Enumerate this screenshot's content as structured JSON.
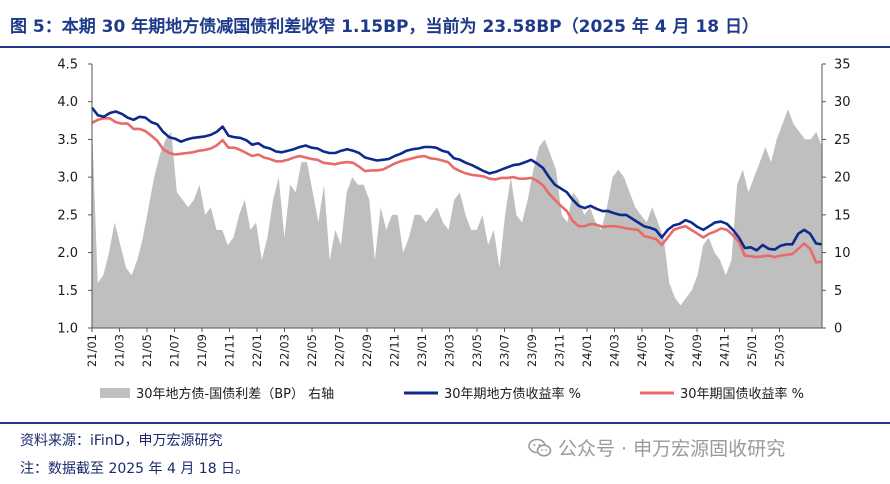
{
  "title": "图 5：本期 30 年期地方债减国债利差收窄 1.15BP，当前为 23.58BP（2025 年 4 月 18 日）",
  "source": "资料来源：iFinD，申万宏源研究",
  "note": "注：数据截至 2025 年 4 月 18 日。",
  "watermark": "公众号 · 申万宏源固收研究",
  "watermark_icon": "wechat-icon",
  "colors": {
    "spread": "#bfbfbf",
    "local": "#0d2a8c",
    "gov": "#e86a6a",
    "accent": "#1f3a8a"
  },
  "chart_data": {
    "type": "line",
    "x_labels": [
      "21/01",
      "21/03",
      "21/05",
      "21/07",
      "21/09",
      "21/11",
      "22/01",
      "22/03",
      "22/05",
      "22/07",
      "22/09",
      "22/11",
      "23/01",
      "23/03",
      "23/05",
      "23/07",
      "23/09",
      "23/11",
      "24/01",
      "24/03",
      "24/05",
      "24/07",
      "24/09",
      "24/11",
      "25/01",
      "25/03"
    ],
    "y_left": {
      "ticks": [
        "1.0",
        "1.5",
        "2.0",
        "2.5",
        "3.0",
        "3.5",
        "4.0",
        "4.5"
      ],
      "lim": [
        1.0,
        4.5
      ]
    },
    "y_right": {
      "ticks": [
        "0",
        "5",
        "10",
        "15",
        "20",
        "25",
        "30",
        "35"
      ],
      "lim": [
        0,
        35
      ]
    },
    "grid": false,
    "legend_position": "bottom",
    "series": [
      {
        "name": "30年地方债-国债利差（BP） 右轴",
        "type": "area",
        "axis": "right",
        "values": [
          27,
          6,
          7,
          10,
          14,
          11,
          8,
          7,
          9,
          12,
          16,
          20,
          23,
          25,
          26,
          18,
          17,
          16,
          17,
          19,
          15,
          16,
          13,
          13,
          11,
          12,
          15,
          17,
          13,
          14,
          9,
          12,
          17,
          20,
          12,
          19,
          18,
          22,
          22,
          18,
          14,
          19,
          9,
          13,
          11,
          18,
          20,
          19,
          19,
          17,
          9,
          16,
          13,
          15,
          15,
          10,
          12,
          15,
          15,
          14,
          15,
          16,
          14,
          13,
          17,
          18,
          15,
          13,
          13,
          15,
          11,
          13,
          8,
          15,
          20,
          15,
          14,
          17,
          21,
          24,
          25,
          23,
          21,
          15,
          14,
          18,
          17,
          15,
          16,
          14,
          13,
          16,
          20,
          21,
          20,
          18,
          16,
          15,
          14,
          16,
          14,
          12,
          6,
          4,
          3,
          4,
          5,
          7,
          11,
          12,
          10,
          9,
          7,
          9,
          19,
          21,
          18,
          20,
          22,
          24,
          22,
          25,
          27,
          29,
          27,
          26,
          25,
          25,
          26,
          24
        ]
      },
      {
        "name": "30年期地方债收益率 %",
        "type": "line",
        "axis": "left",
        "values": [
          3.92,
          3.82,
          3.8,
          3.85,
          3.87,
          3.84,
          3.79,
          3.76,
          3.8,
          3.79,
          3.73,
          3.7,
          3.6,
          3.53,
          3.51,
          3.47,
          3.5,
          3.52,
          3.53,
          3.54,
          3.56,
          3.6,
          3.67,
          3.55,
          3.53,
          3.52,
          3.49,
          3.43,
          3.45,
          3.4,
          3.38,
          3.34,
          3.33,
          3.35,
          3.37,
          3.4,
          3.42,
          3.39,
          3.38,
          3.34,
          3.32,
          3.32,
          3.35,
          3.37,
          3.35,
          3.32,
          3.26,
          3.24,
          3.22,
          3.23,
          3.24,
          3.28,
          3.31,
          3.35,
          3.37,
          3.38,
          3.4,
          3.4,
          3.39,
          3.35,
          3.33,
          3.25,
          3.23,
          3.19,
          3.16,
          3.12,
          3.08,
          3.05,
          3.07,
          3.1,
          3.13,
          3.16,
          3.17,
          3.2,
          3.23,
          3.18,
          3.12,
          3.0,
          2.9,
          2.85,
          2.8,
          2.7,
          2.62,
          2.59,
          2.62,
          2.58,
          2.55,
          2.55,
          2.52,
          2.5,
          2.5,
          2.45,
          2.4,
          2.35,
          2.33,
          2.3,
          2.2,
          2.3,
          2.36,
          2.38,
          2.43,
          2.4,
          2.34,
          2.3,
          2.35,
          2.4,
          2.41,
          2.38,
          2.3,
          2.2,
          2.06,
          2.07,
          2.03,
          2.1,
          2.05,
          2.04,
          2.09,
          2.11,
          2.11,
          2.25,
          2.3,
          2.25,
          2.12,
          2.11
        ]
      },
      {
        "name": "30年期国债收益率 %",
        "type": "line",
        "axis": "left",
        "values": [
          3.72,
          3.76,
          3.78,
          3.78,
          3.73,
          3.71,
          3.71,
          3.64,
          3.64,
          3.61,
          3.55,
          3.48,
          3.37,
          3.32,
          3.3,
          3.31,
          3.32,
          3.33,
          3.35,
          3.36,
          3.38,
          3.42,
          3.49,
          3.39,
          3.39,
          3.36,
          3.32,
          3.28,
          3.3,
          3.26,
          3.24,
          3.21,
          3.21,
          3.23,
          3.26,
          3.28,
          3.26,
          3.24,
          3.23,
          3.19,
          3.18,
          3.17,
          3.19,
          3.2,
          3.19,
          3.14,
          3.08,
          3.09,
          3.09,
          3.1,
          3.14,
          3.18,
          3.21,
          3.23,
          3.25,
          3.27,
          3.28,
          3.25,
          3.24,
          3.22,
          3.2,
          3.12,
          3.08,
          3.05,
          3.03,
          3.02,
          3.01,
          2.98,
          2.97,
          2.99,
          2.99,
          3.0,
          2.98,
          2.98,
          2.99,
          2.95,
          2.89,
          2.78,
          2.7,
          2.62,
          2.55,
          2.42,
          2.35,
          2.35,
          2.38,
          2.37,
          2.34,
          2.35,
          2.35,
          2.34,
          2.32,
          2.31,
          2.3,
          2.22,
          2.2,
          2.18,
          2.1,
          2.2,
          2.3,
          2.33,
          2.35,
          2.3,
          2.25,
          2.2,
          2.25,
          2.28,
          2.32,
          2.3,
          2.23,
          2.14,
          1.96,
          1.95,
          1.94,
          1.95,
          1.96,
          1.94,
          1.96,
          1.97,
          1.98,
          2.05,
          2.12,
          2.05,
          1.87,
          1.88
        ]
      }
    ]
  }
}
